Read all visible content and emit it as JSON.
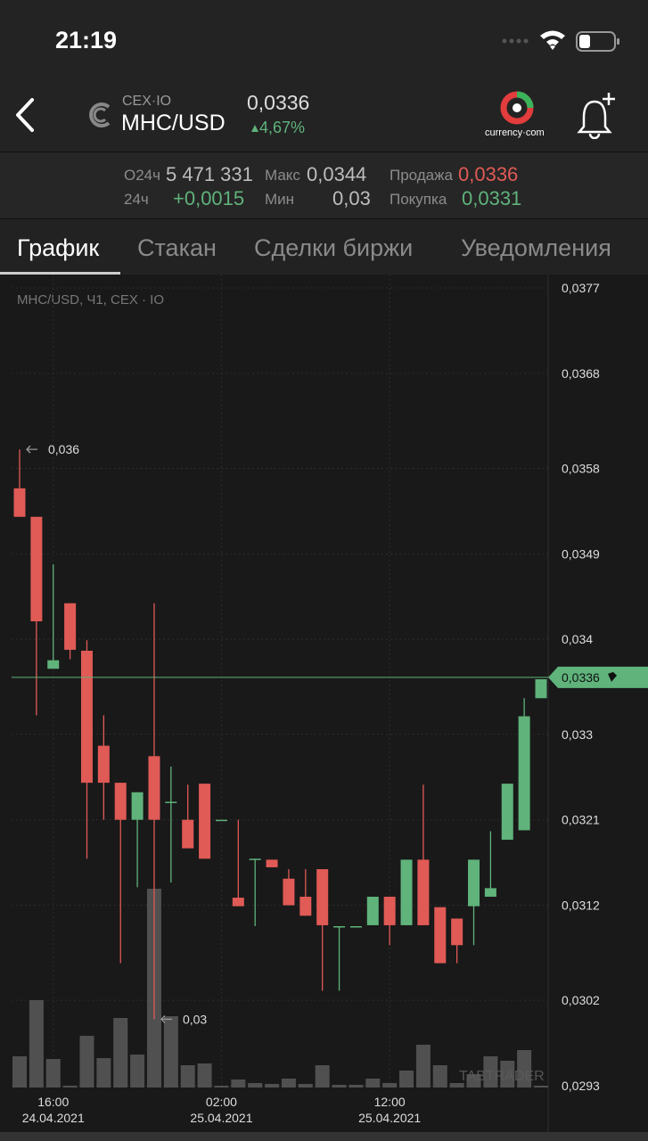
{
  "status": {
    "time": "21:19"
  },
  "header": {
    "exchange": "CEX·IO",
    "pair": "MHC/USD",
    "price": "0,0336",
    "change": "4,67%",
    "brand": "currency·com"
  },
  "stats": {
    "vol_label": "О24ч",
    "vol": "5 471 331",
    "max_label": "Макс",
    "max": "0,0344",
    "sell_label": "Продажа",
    "sell": "0,0336",
    "chg_label": "24ч",
    "chg": "+0,0015",
    "min_label": "Мин",
    "min": "0,03",
    "buy_label": "Покупка",
    "buy": "0,0331"
  },
  "tabs": [
    "График",
    "Стакан",
    "Сделки биржи",
    "Уведомления"
  ],
  "chart_data": {
    "type": "candlestick",
    "label": "MHC/USD, Ч1, CEX · IO",
    "watermark": "TABTRADER",
    "categories": [
      null,
      null,
      "16:00",
      null,
      null,
      null,
      null,
      null,
      null,
      null,
      null,
      null,
      "02:00",
      null,
      null,
      null,
      null,
      null,
      null,
      null,
      null,
      null,
      "12:00",
      null,
      null,
      null,
      null,
      null,
      null,
      null,
      null,
      null
    ],
    "category_dates": [
      null,
      null,
      "24.04.2021",
      null,
      null,
      null,
      null,
      null,
      null,
      null,
      null,
      null,
      "25.04.2021",
      null,
      null,
      null,
      null,
      null,
      null,
      null,
      null,
      null,
      "25.04.2021",
      null,
      null,
      null,
      null,
      null,
      null,
      null,
      null,
      null
    ],
    "open": [
      0.03559,
      0.03529,
      0.03369,
      0.03438,
      0.03388,
      0.03288,
      0.03249,
      0.0321,
      0.03277,
      0.03228,
      0.0321,
      0.03248,
      0.0321,
      0.03128,
      0.03169,
      0.03168,
      0.03148,
      0.03129,
      0.03158,
      0.03098,
      0.03098,
      0.03099,
      0.03129,
      0.03099,
      0.03168,
      0.03118,
      0.03106,
      0.03119,
      0.03129,
      0.03189,
      0.03199,
      0.03338
    ],
    "high": [
      0.036,
      0.03529,
      0.03479,
      0.03438,
      0.03399,
      0.0332,
      0.03249,
      0.03239,
      0.03438,
      0.03266,
      0.03247,
      0.03248,
      0.0321,
      0.0321,
      0.03169,
      0.03168,
      0.03158,
      0.03158,
      0.03158,
      0.03098,
      0.03098,
      0.03129,
      0.03129,
      0.03168,
      0.03247,
      0.03118,
      0.03106,
      0.03168,
      0.03198,
      0.03248,
      0.03338,
      0.03358
    ],
    "low": [
      0.03529,
      0.0332,
      0.03369,
      0.03379,
      0.03169,
      0.0321,
      0.03059,
      0.03139,
      0.03,
      0.03144,
      0.0318,
      0.03169,
      0.0321,
      0.03119,
      0.03098,
      0.0316,
      0.0312,
      0.03109,
      0.0303,
      0.0303,
      0.03098,
      0.03099,
      0.03078,
      0.03099,
      0.03099,
      0.03059,
      0.03059,
      0.03078,
      0.03129,
      0.03189,
      0.03199,
      0.03338
    ],
    "close": [
      0.03529,
      0.03419,
      0.03378,
      0.03389,
      0.03249,
      0.03249,
      0.0321,
      0.03239,
      0.0321,
      0.03229,
      0.0318,
      0.03169,
      0.0321,
      0.03119,
      0.03169,
      0.0316,
      0.0312,
      0.03109,
      0.03099,
      0.03098,
      0.03098,
      0.03129,
      0.03099,
      0.03168,
      0.03099,
      0.03059,
      0.03078,
      0.03168,
      0.03138,
      0.03248,
      0.03319,
      0.03358
    ],
    "volume": [
      35,
      98,
      32,
      2,
      58,
      33,
      78,
      37,
      223,
      80,
      25,
      27,
      2,
      9,
      5,
      4,
      10,
      4,
      25,
      3,
      3,
      10,
      5,
      19,
      48,
      25,
      5,
      15,
      35,
      30,
      42,
      2
    ],
    "up_color": "#5fb37b",
    "down_color": "#e05a56",
    "volume_color": "#5a5a5a",
    "ylim": [
      0.0293,
      0.0377
    ],
    "yticks": [
      {
        "value": 0.0377,
        "label": "0,0377"
      },
      {
        "value": 0.0368,
        "label": "0,0368"
      },
      {
        "value": 0.0358,
        "label": "0,0358"
      },
      {
        "value": 0.0349,
        "label": "0,0349"
      },
      {
        "value": 0.034,
        "label": "0,034"
      },
      {
        "value": 0.033,
        "label": "0,033"
      },
      {
        "value": 0.0321,
        "label": "0,0321"
      },
      {
        "value": 0.0312,
        "label": "0,0312"
      },
      {
        "value": 0.0302,
        "label": "0,0302"
      },
      {
        "value": 0.0293,
        "label": "0,0293"
      }
    ],
    "high_marker": {
      "value": 0.036,
      "label": "0,036"
    },
    "low_marker": {
      "value": 0.03,
      "label": "0,03"
    },
    "last_price": {
      "value": 0.0336,
      "label": "0,0336"
    },
    "grid": true
  }
}
